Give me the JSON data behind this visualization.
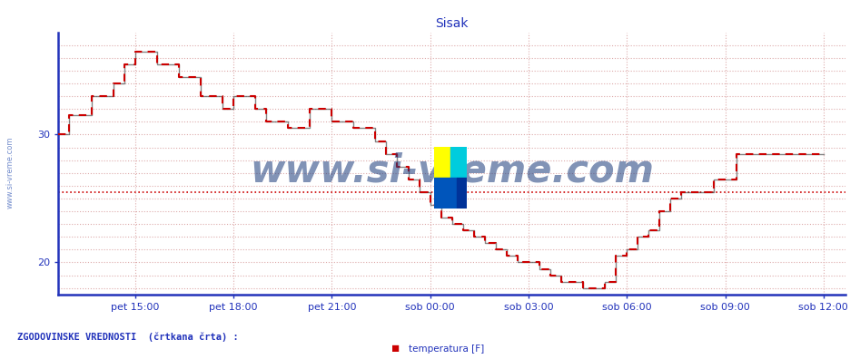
{
  "title": "Sisak",
  "bg_color": "#ffffff",
  "plot_bg_color": "#ffffff",
  "line_color": "#cc0000",
  "black_line_color": "#333333",
  "historical_color": "#cc0000",
  "axis_color": "#2233bb",
  "grid_color": "#ddaaaa",
  "text_color": "#2233bb",
  "ylim": [
    17.5,
    38.0
  ],
  "yticks": [
    20,
    30
  ],
  "title_fontsize": 10,
  "tick_fontsize": 8,
  "watermark": "www.si-vreme.com",
  "watermark_color": "#1a3a7a",
  "footnote": "ZGODOVINSKE VREDNOSTI  (črtkana črta) :",
  "legend_label": "temperatura [F]",
  "historical_value": 25.5,
  "x_tick_labels": [
    "pet 15:00",
    "pet 18:00",
    "pet 21:00",
    "sob 00:00",
    "sob 03:00",
    "sob 06:00",
    "sob 09:00",
    "sob 12:00"
  ],
  "x_tick_positions": [
    120,
    228,
    336,
    444,
    552,
    660,
    768,
    876
  ],
  "xlim": [
    36,
    900
  ],
  "temperature_steps": [
    [
      36,
      30.0
    ],
    [
      48,
      30.0
    ],
    [
      48,
      31.5
    ],
    [
      72,
      31.5
    ],
    [
      72,
      33.0
    ],
    [
      96,
      33.0
    ],
    [
      96,
      34.0
    ],
    [
      108,
      34.0
    ],
    [
      108,
      35.5
    ],
    [
      120,
      35.5
    ],
    [
      120,
      36.5
    ],
    [
      144,
      36.5
    ],
    [
      144,
      35.5
    ],
    [
      168,
      35.5
    ],
    [
      168,
      34.5
    ],
    [
      192,
      34.5
    ],
    [
      192,
      33.0
    ],
    [
      216,
      33.0
    ],
    [
      216,
      32.0
    ],
    [
      228,
      32.0
    ],
    [
      228,
      33.0
    ],
    [
      252,
      33.0
    ],
    [
      252,
      32.0
    ],
    [
      264,
      32.0
    ],
    [
      264,
      31.0
    ],
    [
      288,
      31.0
    ],
    [
      288,
      30.5
    ],
    [
      312,
      30.5
    ],
    [
      312,
      32.0
    ],
    [
      336,
      32.0
    ],
    [
      336,
      31.0
    ],
    [
      360,
      31.0
    ],
    [
      360,
      30.5
    ],
    [
      384,
      30.5
    ],
    [
      384,
      29.5
    ],
    [
      396,
      29.5
    ],
    [
      396,
      28.5
    ],
    [
      408,
      28.5
    ],
    [
      408,
      27.5
    ],
    [
      420,
      27.5
    ],
    [
      420,
      26.5
    ],
    [
      432,
      26.5
    ],
    [
      432,
      25.5
    ],
    [
      444,
      25.5
    ],
    [
      444,
      24.5
    ],
    [
      456,
      24.5
    ],
    [
      456,
      23.5
    ],
    [
      468,
      23.5
    ],
    [
      468,
      23.0
    ],
    [
      480,
      23.0
    ],
    [
      480,
      22.5
    ],
    [
      492,
      22.5
    ],
    [
      492,
      22.0
    ],
    [
      504,
      22.0
    ],
    [
      504,
      21.5
    ],
    [
      516,
      21.5
    ],
    [
      516,
      21.0
    ],
    [
      528,
      21.0
    ],
    [
      528,
      20.5
    ],
    [
      540,
      20.5
    ],
    [
      540,
      20.0
    ],
    [
      552,
      20.0
    ],
    [
      552,
      20.0
    ],
    [
      564,
      20.0
    ],
    [
      564,
      19.5
    ],
    [
      576,
      19.5
    ],
    [
      576,
      19.0
    ],
    [
      588,
      19.0
    ],
    [
      588,
      18.5
    ],
    [
      612,
      18.5
    ],
    [
      612,
      18.0
    ],
    [
      636,
      18.0
    ],
    [
      636,
      18.5
    ],
    [
      648,
      18.5
    ],
    [
      648,
      20.5
    ],
    [
      660,
      20.5
    ],
    [
      660,
      21.0
    ],
    [
      672,
      21.0
    ],
    [
      672,
      22.0
    ],
    [
      684,
      22.0
    ],
    [
      684,
      22.5
    ],
    [
      696,
      22.5
    ],
    [
      696,
      24.0
    ],
    [
      708,
      24.0
    ],
    [
      708,
      25.0
    ],
    [
      720,
      25.0
    ],
    [
      720,
      25.5
    ],
    [
      756,
      25.5
    ],
    [
      756,
      26.5
    ],
    [
      780,
      26.5
    ],
    [
      780,
      28.5
    ],
    [
      876,
      28.5
    ]
  ]
}
